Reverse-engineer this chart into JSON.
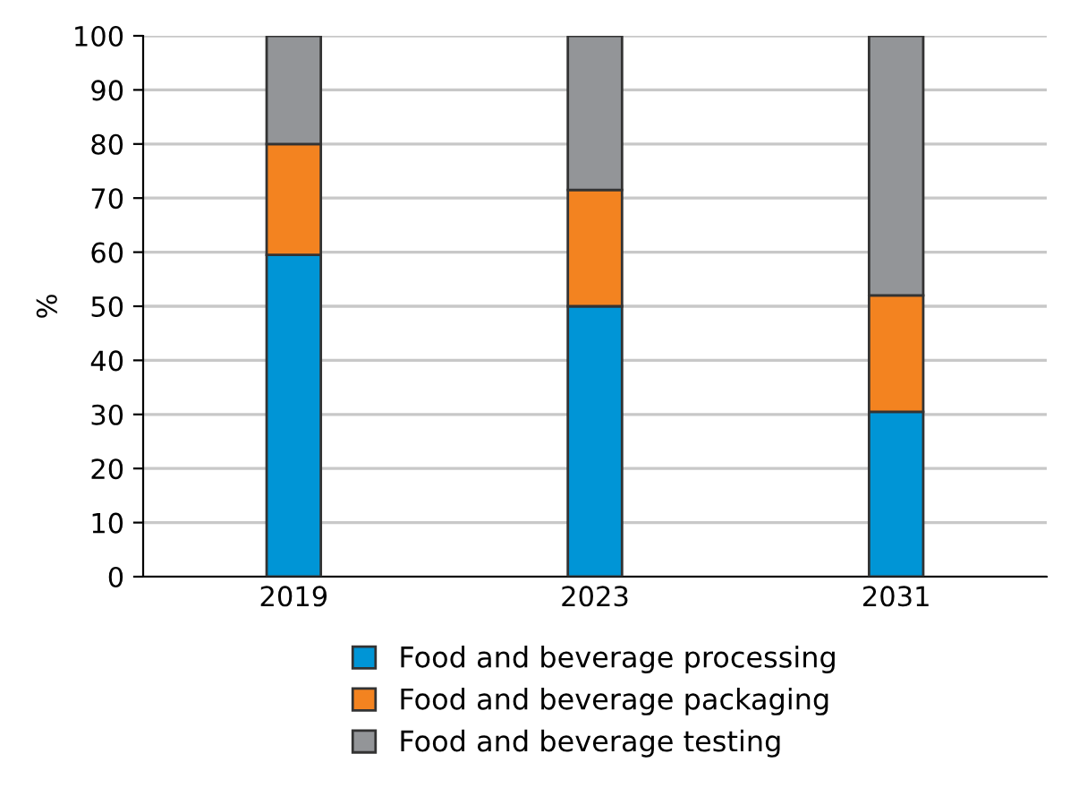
{
  "chart_data": {
    "type": "bar",
    "stacked": true,
    "ylabel": "%",
    "categories": [
      "2019",
      "2023",
      "2031"
    ],
    "series": [
      {
        "name": "Food and beverage processing",
        "color": "#0095d6",
        "values": [
          59.5,
          50,
          30.5
        ]
      },
      {
        "name": "Food and beverage packaging",
        "color": "#f38320",
        "values": [
          20.5,
          21.5,
          21.5
        ]
      },
      {
        "name": "Food and beverage testing",
        "color": "#939598",
        "values": [
          20,
          28.5,
          48
        ]
      }
    ],
    "ylim": [
      0,
      100
    ],
    "yticks": [
      0,
      10,
      20,
      30,
      40,
      50,
      60,
      70,
      80,
      90,
      100
    ],
    "grid": "y",
    "legend": "bottom"
  }
}
